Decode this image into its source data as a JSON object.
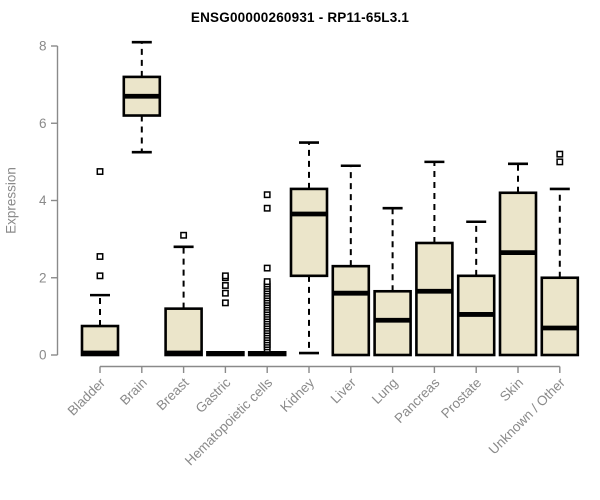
{
  "chart_data": {
    "type": "boxplot",
    "title": "ENSG00000260931 - RP11-65L3.1",
    "ylabel": "Expression",
    "xlabel": "",
    "ylim": [
      0,
      8.4
    ],
    "yticks": [
      0,
      2,
      4,
      6,
      8
    ],
    "grid": false,
    "legend": "none",
    "colors": {
      "box_fill": "#EBE5CA",
      "box_stroke": "#000000",
      "median": "#000000",
      "whisker": "#000000",
      "outlier": "#000000",
      "axis": "#8a8a8a",
      "tick_label": "#8a8a8a",
      "title": "#000000",
      "background": "#ffffff"
    },
    "categories": [
      "Bladder",
      "Brain",
      "Breast",
      "Gastric",
      "Hematopoietic cells",
      "Kidney",
      "Liver",
      "Lung",
      "Pancreas",
      "Prostate",
      "Skin",
      "Unknown / Other"
    ],
    "boxes": [
      {
        "label": "Bladder",
        "whisker_low": 0,
        "q1": 0,
        "median": 0.05,
        "q3": 0.75,
        "whisker_high": 1.55,
        "outliers": [
          2.05,
          2.55,
          4.75
        ],
        "outliers_dense_range": null
      },
      {
        "label": "Brain",
        "whisker_low": 5.25,
        "q1": 6.2,
        "median": 6.7,
        "q3": 7.2,
        "whisker_high": 8.1,
        "outliers": [],
        "outliers_dense_range": null
      },
      {
        "label": "Breast",
        "whisker_low": 0,
        "q1": 0,
        "median": 0.05,
        "q3": 1.2,
        "whisker_high": 2.8,
        "outliers": [
          3.1
        ],
        "outliers_dense_range": null
      },
      {
        "label": "Gastric",
        "whisker_low": 0,
        "q1": 0,
        "median": 0.04,
        "q3": 0.07,
        "whisker_high": 0.07,
        "outliers": [
          1.35,
          1.6,
          1.8,
          2.0,
          2.05
        ],
        "outliers_dense_range": null
      },
      {
        "label": "Hematopoietic cells",
        "whisker_low": 0,
        "q1": 0,
        "median": 0.04,
        "q3": 0.07,
        "whisker_high": 0.07,
        "outliers": [
          2.25,
          3.8,
          4.15
        ],
        "outliers_dense_range": [
          0.15,
          1.9
        ]
      },
      {
        "label": "Kidney",
        "whisker_low": 0.05,
        "q1": 2.05,
        "median": 3.65,
        "q3": 4.3,
        "whisker_high": 5.5,
        "outliers": [],
        "outliers_dense_range": null
      },
      {
        "label": "Liver",
        "whisker_low": 0,
        "q1": 0,
        "median": 1.6,
        "q3": 2.3,
        "whisker_high": 4.9,
        "outliers": [],
        "outliers_dense_range": null
      },
      {
        "label": "Lung",
        "whisker_low": 0,
        "q1": 0,
        "median": 0.9,
        "q3": 1.65,
        "whisker_high": 3.8,
        "outliers": [],
        "outliers_dense_range": null
      },
      {
        "label": "Pancreas",
        "whisker_low": 0,
        "q1": 0,
        "median": 1.65,
        "q3": 2.9,
        "whisker_high": 5.0,
        "outliers": [],
        "outliers_dense_range": null
      },
      {
        "label": "Prostate",
        "whisker_low": 0,
        "q1": 0,
        "median": 1.05,
        "q3": 2.05,
        "whisker_high": 3.45,
        "outliers": [],
        "outliers_dense_range": null
      },
      {
        "label": "Skin",
        "whisker_low": 0,
        "q1": 0,
        "median": 2.65,
        "q3": 4.2,
        "whisker_high": 4.95,
        "outliers": [],
        "outliers_dense_range": null
      },
      {
        "label": "Unknown / Other",
        "whisker_low": 0,
        "q1": 0,
        "median": 0.7,
        "q3": 2.0,
        "whisker_high": 4.3,
        "outliers": [
          5.0,
          5.2
        ],
        "outliers_dense_range": null
      }
    ]
  }
}
